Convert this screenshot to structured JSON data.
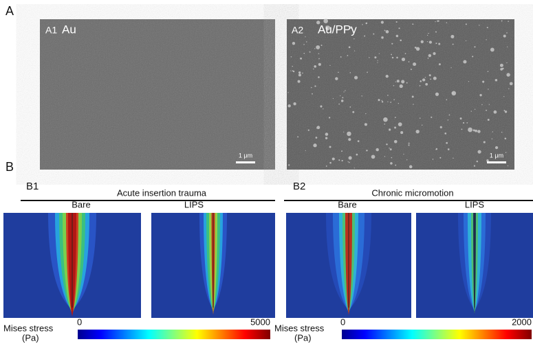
{
  "panel_a": {
    "label": "A",
    "images": [
      {
        "id": "A1",
        "material": "Au",
        "scale_bar": "1 μm"
      },
      {
        "id": "A2",
        "material": "Au/PPy",
        "scale_bar": "1 μm"
      }
    ]
  },
  "panel_b": {
    "label": "B",
    "groups": [
      {
        "id": "B1",
        "title": "Acute insertion trauma",
        "columns": [
          "Bare",
          "LIPS"
        ],
        "colorbar": {
          "label": "Mises stress",
          "unit": "(Pa)",
          "min": 0,
          "max": 5000
        }
      },
      {
        "id": "B2",
        "title": "Chronic micromotion",
        "columns": [
          "Bare",
          "LIPS"
        ],
        "colorbar": {
          "label": "Mises stress",
          "unit": "(Pa)",
          "min": 0,
          "max": 2000
        }
      }
    ]
  }
}
